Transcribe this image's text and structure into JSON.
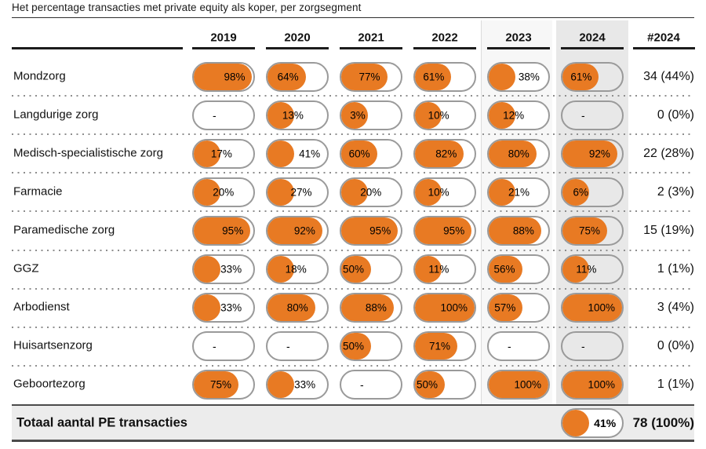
{
  "title": "Het percentage transacties met private equity als koper, per zorgsegment",
  "chart_data": {
    "type": "table",
    "title": "Het percentage transacties met private equity als koper, per zorgsegment",
    "unit": "%",
    "null_marker": "-",
    "year_columns": [
      "2019",
      "2020",
      "2021",
      "2022",
      "2023",
      "2024"
    ],
    "count_column_header": "#2024",
    "highlighted_columns": [
      "2023",
      "2024"
    ],
    "rows": [
      {
        "segment": "Mondzorg",
        "values": [
          98,
          64,
          77,
          61,
          38,
          61
        ],
        "count_2024": "34 (44%)"
      },
      {
        "segment": "Langdurige zorg",
        "values": [
          null,
          13,
          3,
          10,
          12,
          null
        ],
        "count_2024": "0 (0%)"
      },
      {
        "segment": "Medisch-specialistische zorg",
        "values": [
          17,
          41,
          60,
          82,
          80,
          92
        ],
        "count_2024": "22 (28%)"
      },
      {
        "segment": "Farmacie",
        "values": [
          20,
          27,
          20,
          10,
          21,
          6
        ],
        "count_2024": "2 (3%)"
      },
      {
        "segment": "Paramedische zorg",
        "values": [
          95,
          92,
          95,
          95,
          88,
          75
        ],
        "count_2024": "15 (19%)"
      },
      {
        "segment": "GGZ",
        "values": [
          33,
          18,
          50,
          11,
          56,
          11
        ],
        "count_2024": "1 (1%)"
      },
      {
        "segment": "Arbodienst",
        "values": [
          33,
          80,
          88,
          100,
          57,
          100
        ],
        "count_2024": "3 (4%)"
      },
      {
        "segment": "Huisartsenzorg",
        "values": [
          null,
          null,
          50,
          71,
          null,
          null
        ],
        "count_2024": "0 (0%)"
      },
      {
        "segment": "Geboortezorg",
        "values": [
          75,
          33,
          null,
          50,
          100,
          100
        ],
        "count_2024": "1 (1%)"
      }
    ],
    "total_row": {
      "label": "Totaal aantal PE transacties",
      "pct_2024": 41,
      "count_2024": "78 (100%)"
    }
  },
  "colors": {
    "fill_orange": "#E87A23",
    "pill_border": "#9A9A9A",
    "band_2023": "#F7F7F7",
    "band_2024": "#E8E8E8",
    "total_row_bg": "#ECECEC",
    "rule_dark": "#1C1C1C",
    "separator_dot": "#8E8E8E"
  }
}
